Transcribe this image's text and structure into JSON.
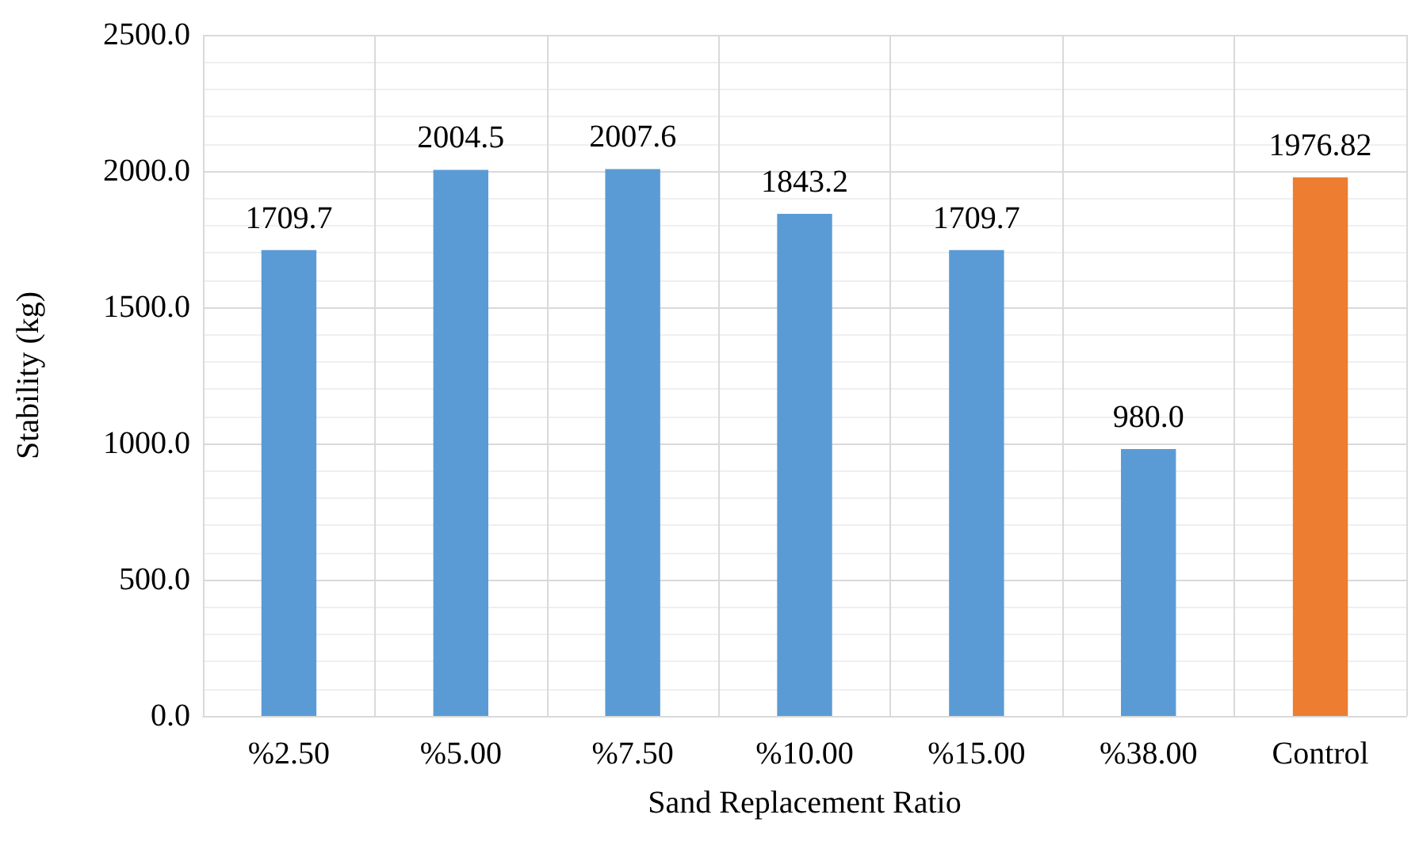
{
  "chart_data": {
    "type": "bar",
    "xlabel": "Sand Replacement Ratio",
    "ylabel": "Stability (kg)",
    "categories": [
      "%2.50",
      "%5.00",
      "%7.50",
      "%10.00",
      "%15.00",
      "%38.00",
      "Control"
    ],
    "values": [
      1709.7,
      2004.5,
      2007.6,
      1843.2,
      1709.7,
      980.0,
      1976.82
    ],
    "colors": [
      "#5b9bd5",
      "#5b9bd5",
      "#5b9bd5",
      "#5b9bd5",
      "#5b9bd5",
      "#5b9bd5",
      "#ed7d31"
    ],
    "value_labels": [
      "1709.7",
      "2004.5",
      "2007.6",
      "1843.2",
      "1709.7",
      "980.0",
      "1976.82"
    ],
    "ylim": [
      0,
      2500
    ],
    "yticks": [
      {
        "value": 0,
        "label": "0.0"
      },
      {
        "value": 500,
        "label": "500.0"
      },
      {
        "value": 1000,
        "label": "1000.0"
      },
      {
        "value": 1500,
        "label": "1500.0"
      },
      {
        "value": 2000,
        "label": "2000.0"
      },
      {
        "value": 2500,
        "label": "2500.0"
      }
    ],
    "grid": true
  }
}
